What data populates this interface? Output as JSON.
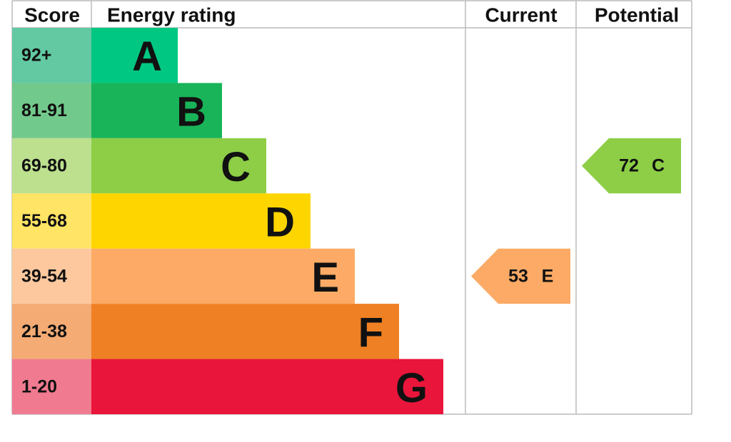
{
  "header": {
    "score": "Score",
    "rating": "Energy rating",
    "current": "Current",
    "potential": "Potential"
  },
  "rows": [
    {
      "score": "92+",
      "letter": "A",
      "color": "#00c781",
      "score_color": "#62c9a3"
    },
    {
      "score": "81-91",
      "letter": "B",
      "color": "#19b459",
      "score_color": "#72c98c"
    },
    {
      "score": "69-80",
      "letter": "C",
      "color": "#8dce46",
      "score_color": "#bce08e"
    },
    {
      "score": "55-68",
      "letter": "D",
      "color": "#ffd500",
      "score_color": "#ffe465"
    },
    {
      "score": "39-54",
      "letter": "E",
      "color": "#fcaa65",
      "score_color": "#fdc89e"
    },
    {
      "score": "21-38",
      "letter": "F",
      "color": "#ef8023",
      "score_color": "#f4ab74"
    },
    {
      "score": "1-20",
      "letter": "G",
      "color": "#e9153b",
      "score_color": "#f07a90"
    }
  ],
  "current": {
    "value": 53,
    "rating": "E",
    "color": "#fcaa65"
  },
  "potential": {
    "value": 72,
    "rating": "C",
    "color": "#8dce46"
  }
}
